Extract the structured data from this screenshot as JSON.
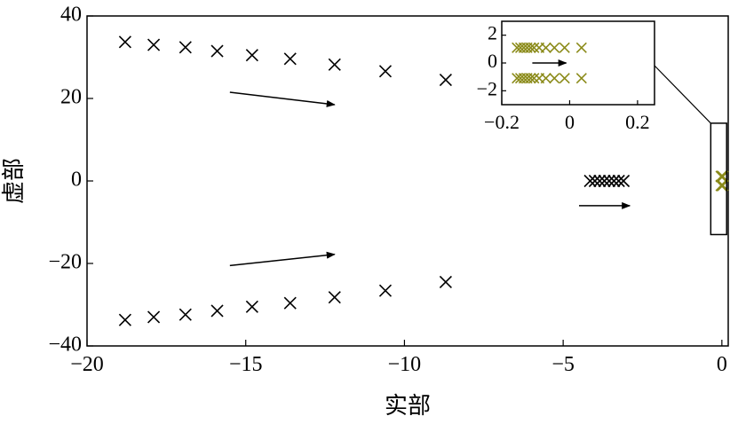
{
  "colors": {
    "main_series": "#000000",
    "highlight_series": "#8b8b1a",
    "axes": "#000000"
  },
  "chart_data": [
    {
      "type": "scatter",
      "xlabel": "实部",
      "ylabel": "虚部",
      "xlim": [
        -20,
        0.2
      ],
      "ylim": [
        -40,
        40
      ],
      "xticks": [
        -20,
        -15,
        -10,
        -5,
        0
      ],
      "yticks": [
        -40,
        -20,
        0,
        20,
        40
      ],
      "tick_labels": {
        "x": [
          "−20",
          "−15",
          "−10",
          "−5",
          "0"
        ],
        "y": [
          "−40",
          "−20",
          "0",
          "20",
          "40"
        ]
      },
      "marker": "x",
      "series": [
        {
          "color": "#000000",
          "points": [
            [
              -18.8,
              33.7
            ],
            [
              -17.9,
              33.0
            ],
            [
              -16.9,
              32.4
            ],
            [
              -15.9,
              31.5
            ],
            [
              -14.8,
              30.5
            ],
            [
              -13.6,
              29.6
            ],
            [
              -12.2,
              28.2
            ],
            [
              -10.6,
              26.6
            ],
            [
              -8.7,
              24.5
            ],
            [
              -18.8,
              -33.7
            ],
            [
              -17.9,
              -33.0
            ],
            [
              -16.9,
              -32.4
            ],
            [
              -15.9,
              -31.5
            ],
            [
              -14.8,
              -30.5
            ],
            [
              -13.6,
              -29.6
            ],
            [
              -12.2,
              -28.2
            ],
            [
              -10.6,
              -26.6
            ],
            [
              -8.7,
              -24.5
            ],
            [
              -4.15,
              0.0
            ],
            [
              -4.0,
              0.0
            ],
            [
              -3.85,
              0.0
            ],
            [
              -3.7,
              0.0
            ],
            [
              -3.55,
              0.0
            ],
            [
              -3.4,
              0.0
            ],
            [
              -3.25,
              0.0
            ],
            [
              -3.1,
              0.0
            ]
          ]
        },
        {
          "color": "#8b8b1a",
          "points": [
            [
              -0.02,
              1.1
            ],
            [
              -0.015,
              1.1
            ],
            [
              -0.01,
              1.1
            ],
            [
              -0.005,
              1.1
            ],
            [
              0.0,
              1.1
            ],
            [
              0.005,
              1.1
            ],
            [
              0.03,
              1.1
            ],
            [
              -0.02,
              -1.1
            ],
            [
              -0.015,
              -1.1
            ],
            [
              -0.01,
              -1.1
            ],
            [
              -0.005,
              -1.1
            ],
            [
              0.0,
              -1.1
            ],
            [
              0.005,
              -1.1
            ],
            [
              0.03,
              -1.1
            ]
          ]
        }
      ],
      "arrows": [
        {
          "from": [
            -15.5,
            21.5
          ],
          "to": [
            -12.2,
            18.5
          ]
        },
        {
          "from": [
            -15.5,
            -20.5
          ],
          "to": [
            -12.2,
            -17.8
          ]
        },
        {
          "from": [
            -4.5,
            -6.0
          ],
          "to": [
            -2.9,
            -6.0
          ]
        }
      ],
      "zoom_box": {
        "x": [
          -0.35,
          0.15
        ],
        "y": [
          -13,
          14
        ]
      }
    },
    {
      "type": "scatter",
      "role": "inset",
      "xlim": [
        -0.2,
        0.25
      ],
      "ylim": [
        -3,
        3
      ],
      "xticks": [
        -0.2,
        0,
        0.2
      ],
      "yticks": [
        -2,
        0,
        2
      ],
      "tick_labels": {
        "x": [
          "−0.2",
          "0",
          "0.2"
        ],
        "y": [
          "−2",
          "0",
          "2"
        ]
      },
      "marker": "x",
      "series": [
        {
          "color": "#8b8b1a",
          "points": [
            [
              -0.155,
              1.1
            ],
            [
              -0.145,
              1.1
            ],
            [
              -0.135,
              1.1
            ],
            [
              -0.125,
              1.1
            ],
            [
              -0.115,
              1.1
            ],
            [
              -0.105,
              1.1
            ],
            [
              -0.09,
              1.1
            ],
            [
              -0.07,
              1.1
            ],
            [
              -0.045,
              1.1
            ],
            [
              -0.015,
              1.1
            ],
            [
              0.035,
              1.1
            ],
            [
              -0.155,
              -1.1
            ],
            [
              -0.145,
              -1.1
            ],
            [
              -0.135,
              -1.1
            ],
            [
              -0.125,
              -1.1
            ],
            [
              -0.115,
              -1.1
            ],
            [
              -0.105,
              -1.1
            ],
            [
              -0.09,
              -1.1
            ],
            [
              -0.07,
              -1.1
            ],
            [
              -0.045,
              -1.1
            ],
            [
              -0.015,
              -1.1
            ],
            [
              0.035,
              -1.1
            ]
          ]
        }
      ],
      "arrows": [
        {
          "from": [
            -0.11,
            0.0
          ],
          "to": [
            -0.01,
            0.0
          ]
        }
      ]
    }
  ]
}
